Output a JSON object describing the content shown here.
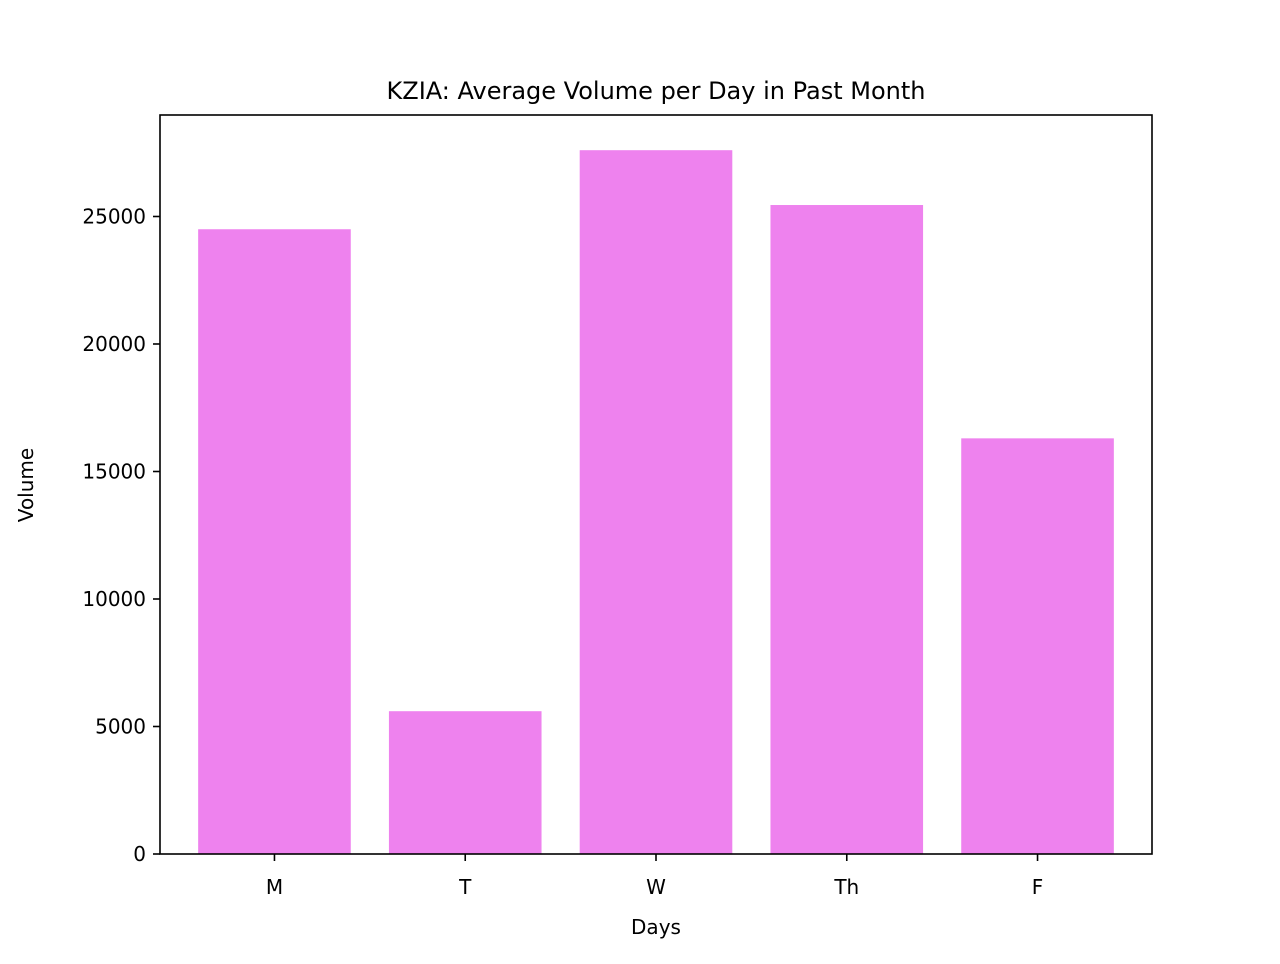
{
  "chart_data": {
    "type": "bar",
    "title": "KZIA: Average Volume per Day in Past Month",
    "xlabel": "Days",
    "ylabel": "Volume",
    "categories": [
      "M",
      "T",
      "W",
      "Th",
      "F"
    ],
    "values": [
      24500,
      5600,
      27600,
      25450,
      16300
    ],
    "ylim": [
      0,
      28980
    ],
    "yticks": [
      0,
      5000,
      10000,
      15000,
      20000,
      25000
    ],
    "ytick_labels": [
      "0",
      "5000",
      "10000",
      "15000",
      "20000",
      "25000"
    ],
    "bar_color": "#ee82ee",
    "grid": false,
    "legend": "none"
  }
}
